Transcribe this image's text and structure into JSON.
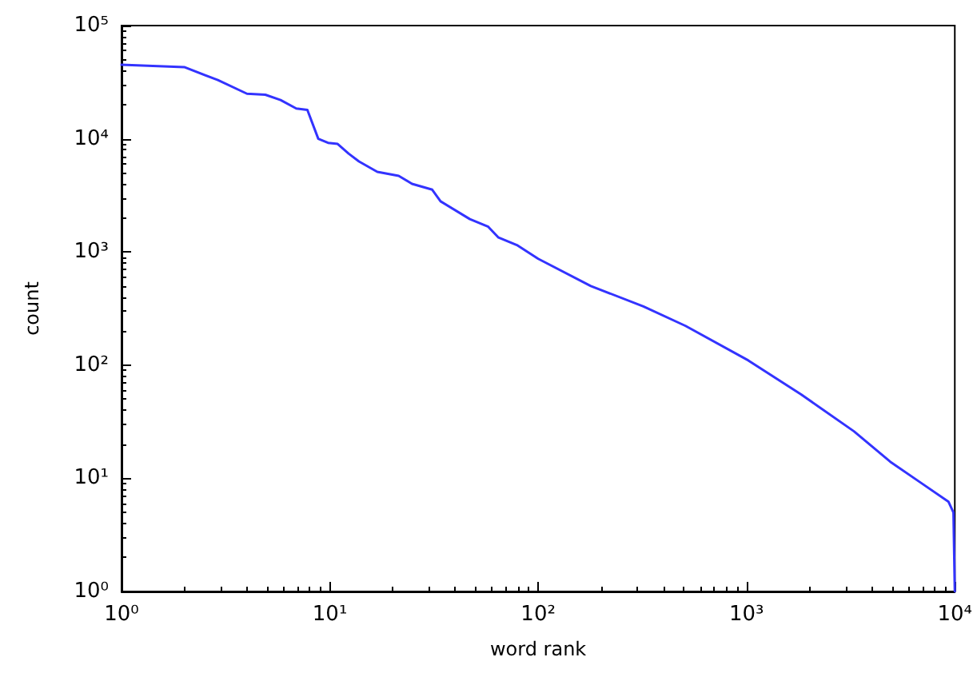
{
  "chart_data": {
    "type": "line",
    "xlabel": "word rank",
    "ylabel": "count",
    "log": "xy",
    "grid": false,
    "marker": "none",
    "line_style": "solid",
    "xlim": [
      1,
      10000
    ],
    "ylim": [
      1,
      100000
    ],
    "xticks": [
      {
        "value": 1,
        "label": "10⁰"
      },
      {
        "value": 10,
        "label": "10¹"
      },
      {
        "value": 100,
        "label": "10²"
      },
      {
        "value": 1000,
        "label": "10³"
      },
      {
        "value": 10000,
        "label": "10⁴"
      }
    ],
    "yticks": [
      {
        "value": 1,
        "label": "10⁰"
      },
      {
        "value": 10,
        "label": "10¹"
      },
      {
        "value": 100,
        "label": "10²"
      },
      {
        "value": 1000,
        "label": "10³"
      },
      {
        "value": 10000,
        "label": "10⁴"
      },
      {
        "value": 100000,
        "label": "10⁵"
      }
    ],
    "series": [
      {
        "color": "#3333ff",
        "x": [
          1,
          2,
          2.9,
          4,
          4.9,
          5.8,
          6.9,
          7.8,
          8.8,
          9.8,
          10.9,
          12.3,
          13.8,
          16.9,
          21.4,
          24.8,
          31,
          34,
          47,
          57.6,
          64.5,
          79,
          100,
          179,
          320,
          510,
          1020,
          1830,
          3280,
          4900,
          6950,
          9330,
          9850,
          10000
        ],
        "values": [
          45000,
          43000,
          33000,
          25000,
          24500,
          22000,
          18500,
          18000,
          10000,
          9200,
          9000,
          7400,
          6300,
          5100,
          4700,
          4000,
          3550,
          2800,
          1950,
          1670,
          1340,
          1150,
          870,
          500,
          330,
          222,
          110,
          55,
          26,
          14,
          9,
          6.2,
          5,
          1
        ]
      }
    ]
  }
}
